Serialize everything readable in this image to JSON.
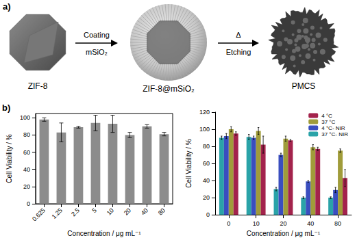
{
  "panel_a": {
    "label": "a)",
    "nodes": [
      {
        "label": "ZIF-8"
      },
      {
        "label": "ZIF-8@mSiO₂"
      },
      {
        "label": "PMCS"
      }
    ],
    "arrows": [
      {
        "above": "Coating",
        "below": "mSiO₂"
      },
      {
        "above": "Δ",
        "below": "Etching"
      }
    ]
  },
  "panel_b_label": "b)",
  "chart_data": [
    {
      "type": "bar",
      "categories": [
        "0.625",
        "1.25",
        "2.5",
        "5",
        "10",
        "20",
        "40",
        "80"
      ],
      "values": [
        98,
        83,
        89,
        94,
        93,
        80,
        90,
        81
      ],
      "errors": [
        2,
        11,
        1,
        9,
        10,
        3,
        2,
        2
      ],
      "color": "#8c8c8c",
      "xlabel": "Concentration / μg mL⁻¹",
      "ylabel": "Cell Viability / %",
      "ylim": [
        0,
        105
      ],
      "yticks": [
        0,
        20,
        40,
        60,
        80,
        100
      ],
      "grid": false
    },
    {
      "type": "bar",
      "categories": [
        "0",
        "10",
        "20",
        "40",
        "80"
      ],
      "series": [
        {
          "name": "4 °C",
          "color": "#a3234c",
          "values": [
            95,
            82,
            87,
            77,
            43
          ],
          "errors": [
            2,
            10,
            1,
            2,
            10
          ]
        },
        {
          "name": "37 °C",
          "color": "#a09c3a",
          "values": [
            100,
            98,
            89,
            79,
            75
          ],
          "errors": [
            3,
            4,
            3,
            3,
            2
          ]
        },
        {
          "name": "4 °C- NIR",
          "color": "#3a4ebf",
          "values": [
            92,
            90,
            70,
            39,
            29
          ],
          "errors": [
            3,
            2,
            2,
            1,
            3
          ]
        },
        {
          "name": "37 °C- NIR",
          "color": "#2aa3a8",
          "values": [
            90,
            91,
            30,
            20,
            20
          ],
          "errors": [
            2,
            3,
            2,
            1,
            1
          ]
        }
      ],
      "xlabel": "Concentration / μg mL⁻¹",
      "ylabel": "Cell Viability / %",
      "ylim": [
        0,
        120
      ],
      "yticks": [
        0,
        20,
        40,
        60,
        80,
        100,
        120
      ],
      "legend": "upper right",
      "grid": false
    }
  ]
}
